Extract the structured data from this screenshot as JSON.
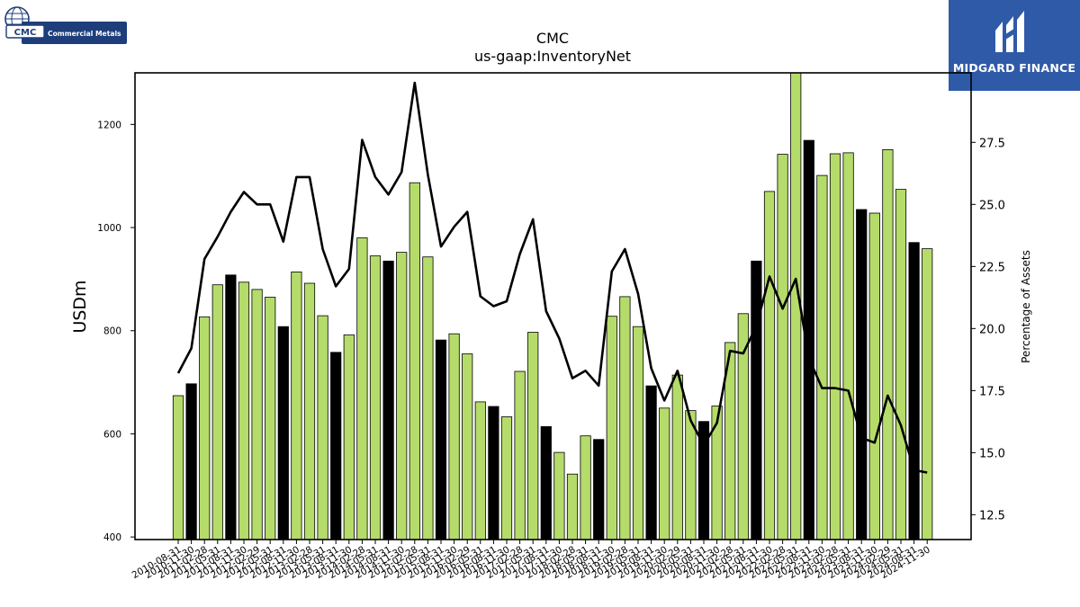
{
  "logos": {
    "left": {
      "acronym": "CMC",
      "name": "Commercial Metals"
    },
    "right": {
      "name": "MIDGARD FINANCE",
      "bg_color": "#2f5aa8"
    }
  },
  "chart_data": {
    "type": "bar",
    "title": "CMC",
    "subtitle": "us-gaap:InventoryNet",
    "ylabel": "USDm",
    "y2label": "Percentage of Assets",
    "ylim": [
      395,
      1300
    ],
    "y2lim": [
      11.5,
      30.3
    ],
    "yticks": [
      400,
      600,
      800,
      1000,
      1200
    ],
    "y2ticks": [
      12.5,
      15.0,
      17.5,
      20.0,
      22.5,
      25.0,
      27.5
    ],
    "colors": {
      "bar": "#b5dc6a",
      "bar_fiscal_year_end": "#000000",
      "line": "#000000"
    },
    "categories": [
      "2010-08-31",
      "2010-11-30",
      "2011-02-28",
      "2011-05-31",
      "2011-08-31",
      "2011-11-30",
      "2012-02-29",
      "2012-05-31",
      "2012-08-31",
      "2012-11-30",
      "2013-02-28",
      "2013-05-31",
      "2013-08-31",
      "2013-11-30",
      "2014-02-28",
      "2014-05-31",
      "2014-08-31",
      "2014-11-30",
      "2015-02-28",
      "2015-05-31",
      "2015-08-31",
      "2015-11-30",
      "2016-02-29",
      "2016-05-31",
      "2016-08-31",
      "2016-11-30",
      "2017-02-28",
      "2017-05-31",
      "2017-08-31",
      "2017-11-30",
      "2018-02-28",
      "2018-05-31",
      "2018-08-31",
      "2018-11-30",
      "2019-02-28",
      "2019-05-31",
      "2019-08-31",
      "2019-11-30",
      "2020-02-29",
      "2020-05-31",
      "2020-08-31",
      "2020-11-30",
      "2021-02-28",
      "2021-05-31",
      "2021-08-31",
      "2021-11-30",
      "2022-02-28",
      "2022-05-31",
      "2022-08-31",
      "2022-11-30",
      "2023-02-28",
      "2023-05-31",
      "2023-08-31",
      "2023-11-30",
      "2024-02-29",
      "2024-05-31",
      "2024-08-31",
      "2024-11-30"
    ],
    "highlight_categories": [
      "2010-11-30",
      "2011-08-31",
      "2012-08-31",
      "2013-08-31",
      "2014-08-31",
      "2015-08-31",
      "2016-08-31",
      "2017-08-31",
      "2018-08-31",
      "2019-08-31",
      "2020-08-31",
      "2021-08-31",
      "2022-08-31",
      "2023-08-31",
      "2024-08-31"
    ],
    "series": [
      {
        "values": [
          674,
          697,
          827,
          889,
          908,
          894,
          880,
          865,
          808,
          914,
          892,
          829,
          758,
          792,
          980,
          945,
          935,
          952,
          1087,
          943,
          782,
          794,
          755,
          662,
          653,
          633,
          721,
          797,
          614,
          564,
          522,
          596,
          589,
          828,
          866,
          808,
          693,
          650,
          714,
          645,
          624,
          654,
          777,
          833,
          935,
          1070,
          1142,
          1300,
          1169,
          1101,
          1143,
          1145,
          1035,
          1028,
          1151,
          1074,
          971,
          959
        ]
      },
      {
        "values": [
          18.2,
          19.2,
          22.8,
          23.7,
          24.7,
          25.5,
          25.0,
          25.0,
          23.5,
          26.1,
          26.1,
          23.2,
          21.7,
          22.4,
          27.6,
          26.1,
          25.4,
          26.3,
          29.9,
          26.2,
          23.3,
          24.1,
          24.7,
          21.3,
          20.9,
          21.1,
          23.0,
          24.4,
          20.7,
          19.6,
          18.0,
          18.3,
          17.7,
          22.3,
          23.2,
          21.4,
          18.4,
          17.1,
          18.3,
          16.3,
          15.3,
          16.2,
          19.1,
          19.0,
          20.1,
          22.1,
          20.8,
          22.0,
          18.8,
          17.6,
          17.6,
          17.5,
          15.6,
          15.4,
          17.3,
          16.1,
          14.3,
          14.2
        ]
      }
    ]
  }
}
